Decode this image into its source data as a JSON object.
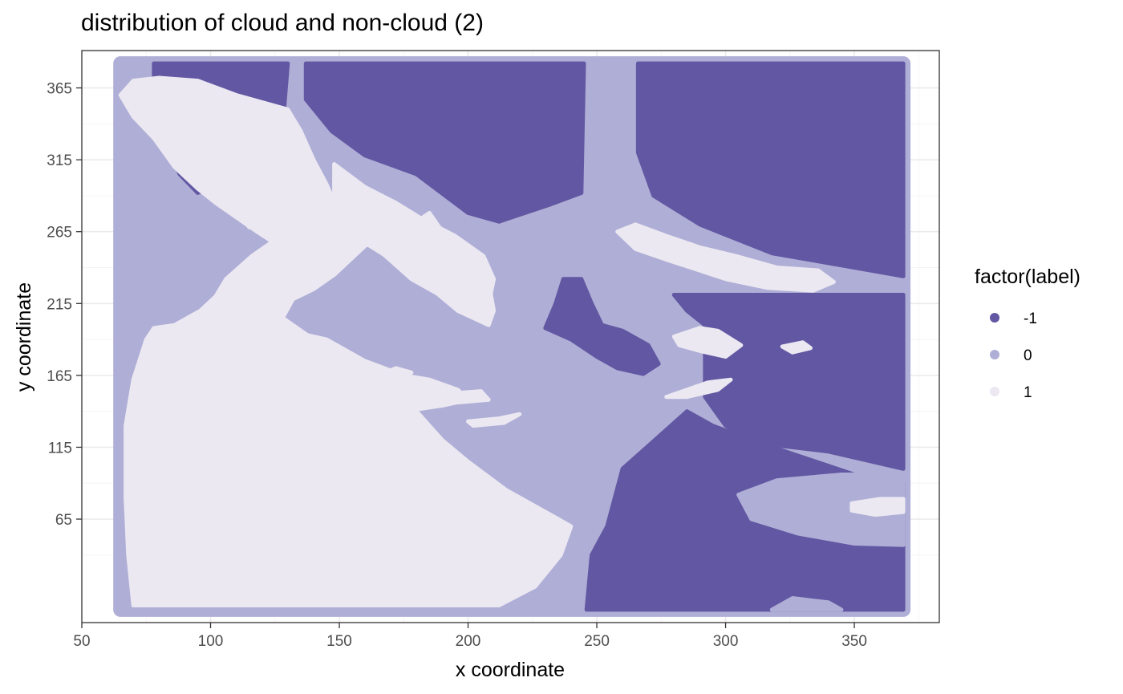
{
  "chart_data": {
    "type": "scatter",
    "title": "distribution of cloud and non-cloud (2)",
    "xlabel": "x coordinate",
    "ylabel": "y coordinate",
    "xlim": [
      50,
      383
    ],
    "ylim": [
      -7,
      391
    ],
    "x_ticks": [
      50,
      100,
      150,
      200,
      250,
      300,
      350
    ],
    "y_ticks": [
      65,
      115,
      165,
      215,
      265,
      315,
      365
    ],
    "grid": true,
    "legend": {
      "title": "factor(label)",
      "position": "right",
      "entries": [
        {
          "label": "-1",
          "color": "#6157a2"
        },
        {
          "label": "0",
          "color": "#afaed6"
        },
        {
          "label": "1",
          "color": "#ebe8f2"
        }
      ]
    },
    "data_extent": {
      "x": [
        65,
        369
      ],
      "y": [
        2,
        382
      ]
    },
    "regions": [
      {
        "label": "0",
        "polygon": [
          [
            65,
            2
          ],
          [
            369,
            2
          ],
          [
            369,
            382
          ],
          [
            65,
            382
          ]
        ]
      },
      {
        "label": "-1",
        "polygon": [
          [
            137,
            382
          ],
          [
            245,
            382
          ],
          [
            244,
            292
          ],
          [
            232,
            284
          ],
          [
            212,
            272
          ],
          [
            200,
            278
          ],
          [
            180,
            305
          ],
          [
            160,
            318
          ],
          [
            147,
            335
          ],
          [
            137,
            357
          ]
        ]
      },
      {
        "label": "-1",
        "polygon": [
          [
            266,
            382
          ],
          [
            369,
            382
          ],
          [
            369,
            234
          ],
          [
            350,
            240
          ],
          [
            318,
            250
          ],
          [
            290,
            270
          ],
          [
            272,
            290
          ],
          [
            266,
            320
          ]
        ]
      },
      {
        "label": "-1",
        "polygon": [
          [
            78,
            382
          ],
          [
            130,
            382
          ],
          [
            128,
            338
          ],
          [
            117,
            342
          ],
          [
            108,
            320
          ],
          [
            105,
            305
          ],
          [
            100,
            296
          ],
          [
            95,
            292
          ],
          [
            88,
            305
          ],
          [
            82,
            330
          ],
          [
            78,
            350
          ]
        ]
      },
      {
        "label": "-1",
        "polygon": [
          [
            246,
            2
          ],
          [
            369,
            2
          ],
          [
            369,
            90
          ],
          [
            350,
            96
          ],
          [
            330,
            108
          ],
          [
            310,
            120
          ],
          [
            295,
            130
          ],
          [
            285,
            140
          ],
          [
            270,
            116
          ],
          [
            260,
            100
          ],
          [
            254,
            60
          ],
          [
            248,
            40
          ]
        ]
      },
      {
        "label": "-1",
        "polygon": [
          [
            280,
            221
          ],
          [
            369,
            221
          ],
          [
            369,
            100
          ],
          [
            340,
            112
          ],
          [
            312,
            118
          ],
          [
            300,
            130
          ],
          [
            292,
            150
          ],
          [
            292,
            200
          ],
          [
            285,
            210
          ]
        ]
      },
      {
        "label": "-1",
        "polygon": [
          [
            237,
            232
          ],
          [
            244,
            232
          ],
          [
            248,
            215
          ],
          [
            252,
            200
          ],
          [
            260,
            196
          ],
          [
            270,
            186
          ],
          [
            274,
            173
          ],
          [
            268,
            166
          ],
          [
            258,
            170
          ],
          [
            250,
            178
          ],
          [
            240,
            190
          ],
          [
            230,
            198
          ],
          [
            234,
            215
          ]
        ]
      },
      {
        "label": "0",
        "polygon": [
          [
            305,
            82
          ],
          [
            320,
            92
          ],
          [
            345,
            96
          ],
          [
            369,
            96
          ],
          [
            369,
            47
          ],
          [
            350,
            48
          ],
          [
            328,
            55
          ],
          [
            310,
            65
          ]
        ]
      },
      {
        "label": "0",
        "polygon": [
          [
            318,
            2
          ],
          [
            345,
            2
          ],
          [
            340,
            7
          ],
          [
            326,
            10
          ]
        ]
      },
      {
        "label": "1",
        "polygon": [
          [
            65,
            360
          ],
          [
            70,
            345
          ],
          [
            78,
            330
          ],
          [
            86,
            310
          ],
          [
            95,
            295
          ],
          [
            102,
            285
          ],
          [
            110,
            275
          ],
          [
            118,
            265
          ],
          [
            124,
            258
          ],
          [
            116,
            248
          ],
          [
            106,
            232
          ],
          [
            102,
            220
          ],
          [
            96,
            210
          ],
          [
            86,
            200
          ],
          [
            78,
            198
          ],
          [
            75,
            190
          ],
          [
            70,
            162
          ],
          [
            67,
            130
          ],
          [
            67,
            80
          ],
          [
            68,
            40
          ],
          [
            70,
            5
          ],
          [
            212,
            5
          ],
          [
            226,
            18
          ],
          [
            236,
            40
          ],
          [
            240,
            60
          ],
          [
            232,
            68
          ],
          [
            215,
            85
          ],
          [
            200,
            105
          ],
          [
            190,
            120
          ],
          [
            180,
            140
          ],
          [
            160,
            155
          ],
          [
            140,
            170
          ],
          [
            118,
            190
          ],
          [
            108,
            198
          ],
          [
            98,
            185
          ],
          [
            95,
            160
          ],
          [
            102,
            145
          ],
          [
            120,
            140
          ],
          [
            150,
            145
          ],
          [
            170,
            138
          ],
          [
            185,
            148
          ],
          [
            195,
            152
          ],
          [
            175,
            160
          ],
          [
            150,
            172
          ],
          [
            140,
            190
          ],
          [
            128,
            205
          ],
          [
            132,
            218
          ],
          [
            140,
            225
          ],
          [
            148,
            235
          ],
          [
            160,
            255
          ],
          [
            170,
            265
          ],
          [
            180,
            272
          ],
          [
            185,
            278
          ],
          [
            190,
            265
          ],
          [
            195,
            255
          ],
          [
            202,
            240
          ],
          [
            208,
            230
          ],
          [
            210,
            210
          ],
          [
            208,
            200
          ],
          [
            196,
            210
          ],
          [
            188,
            222
          ],
          [
            178,
            232
          ],
          [
            168,
            248
          ],
          [
            158,
            262
          ],
          [
            150,
            278
          ],
          [
            145,
            298
          ],
          [
            140,
            315
          ],
          [
            135,
            335
          ],
          [
            130,
            350
          ],
          [
            110,
            360
          ],
          [
            95,
            370
          ],
          [
            80,
            372
          ],
          [
            70,
            370
          ]
        ]
      },
      {
        "label": "1",
        "polygon": [
          [
            97,
            185
          ],
          [
            110,
            195
          ],
          [
            125,
            198
          ],
          [
            145,
            190
          ],
          [
            160,
            175
          ],
          [
            175,
            165
          ],
          [
            185,
            162
          ],
          [
            196,
            155
          ],
          [
            200,
            148
          ],
          [
            190,
            144
          ],
          [
            175,
            140
          ],
          [
            160,
            140
          ],
          [
            140,
            148
          ],
          [
            120,
            150
          ],
          [
            103,
            155
          ],
          [
            99,
            170
          ]
        ]
      },
      {
        "label": "1",
        "polygon": [
          [
            148,
            312
          ],
          [
            160,
            296
          ],
          [
            172,
            285
          ],
          [
            182,
            274
          ],
          [
            195,
            262
          ],
          [
            206,
            248
          ],
          [
            210,
            232
          ],
          [
            208,
            215
          ],
          [
            200,
            214
          ],
          [
            192,
            220
          ],
          [
            182,
            232
          ],
          [
            170,
            246
          ],
          [
            162,
            255
          ],
          [
            153,
            265
          ],
          [
            148,
            285
          ]
        ]
      },
      {
        "label": "1",
        "polygon": [
          [
            258,
            265
          ],
          [
            265,
            253
          ],
          [
            278,
            245
          ],
          [
            290,
            238
          ],
          [
            300,
            232
          ],
          [
            316,
            226
          ],
          [
            334,
            224
          ],
          [
            342,
            230
          ],
          [
            336,
            238
          ],
          [
            320,
            240
          ],
          [
            304,
            248
          ],
          [
            290,
            254
          ],
          [
            277,
            262
          ],
          [
            265,
            270
          ]
        ]
      },
      {
        "label": "1",
        "polygon": [
          [
            280,
            192
          ],
          [
            290,
            198
          ],
          [
            297,
            196
          ],
          [
            306,
            186
          ],
          [
            300,
            178
          ],
          [
            290,
            182
          ],
          [
            282,
            186
          ]
        ]
      },
      {
        "label": "1",
        "polygon": [
          [
            277,
            150
          ],
          [
            293,
            160
          ],
          [
            302,
            162
          ],
          [
            297,
            155
          ],
          [
            285,
            150
          ]
        ]
      },
      {
        "label": "1",
        "polygon": [
          [
            106,
            300
          ],
          [
            111,
            290
          ],
          [
            117,
            282
          ],
          [
            120,
            272
          ],
          [
            115,
            268
          ],
          [
            110,
            280
          ],
          [
            104,
            292
          ]
        ]
      },
      {
        "label": "1",
        "polygon": [
          [
            122,
            295
          ],
          [
            128,
            290
          ],
          [
            131,
            278
          ],
          [
            127,
            272
          ],
          [
            122,
            282
          ]
        ]
      },
      {
        "label": "1",
        "polygon": [
          [
            165,
            165
          ],
          [
            172,
            170
          ],
          [
            178,
            167
          ],
          [
            174,
            160
          ],
          [
            166,
            161
          ]
        ]
      },
      {
        "label": "1",
        "polygon": [
          [
            190,
            152
          ],
          [
            205,
            154
          ],
          [
            208,
            148
          ],
          [
            195,
            146
          ]
        ]
      },
      {
        "label": "1",
        "polygon": [
          [
            200,
            133
          ],
          [
            212,
            135
          ],
          [
            220,
            138
          ],
          [
            214,
            132
          ],
          [
            202,
            130
          ]
        ]
      },
      {
        "label": "1",
        "polygon": [
          [
            322,
            185
          ],
          [
            330,
            188
          ],
          [
            333,
            184
          ],
          [
            326,
            181
          ]
        ]
      },
      {
        "label": "1",
        "polygon": [
          [
            349,
            76
          ],
          [
            360,
            79
          ],
          [
            369,
            79
          ],
          [
            369,
            70
          ],
          [
            358,
            68
          ],
          [
            349,
            71
          ]
        ]
      }
    ]
  }
}
